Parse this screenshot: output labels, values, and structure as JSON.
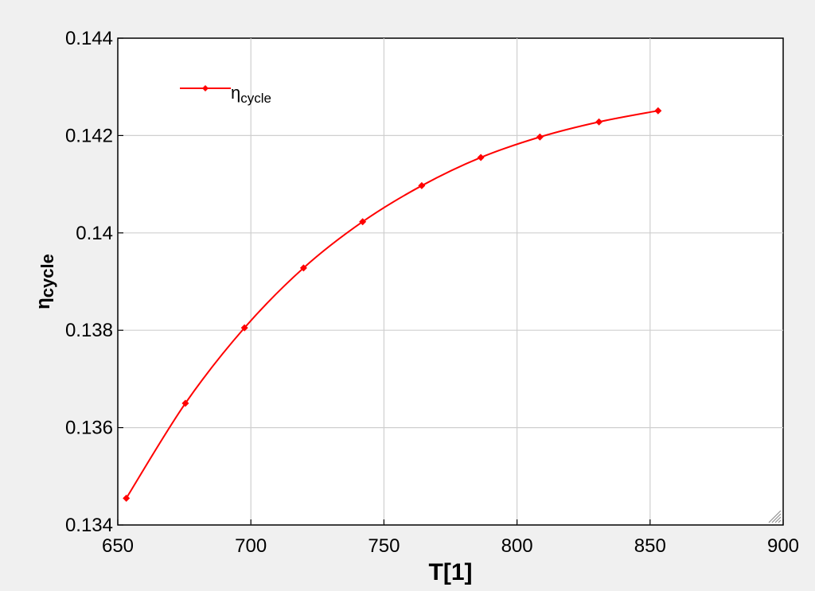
{
  "chart_data": {
    "type": "line",
    "xlabel": "T[1]",
    "ylabel": "η",
    "ylabel_sub": "cycle",
    "xlim": [
      650,
      900
    ],
    "ylim": [
      0.134,
      0.144
    ],
    "x_ticks": [
      "650",
      "700",
      "750",
      "800",
      "850",
      "900"
    ],
    "y_ticks": [
      "0.134",
      "0.136",
      "0.138",
      "0.14",
      "0.142",
      "0.144"
    ],
    "grid": true,
    "legend": {
      "position": "top-left",
      "symbol": "η",
      "subscript": "cycle"
    },
    "series": [
      {
        "name": "η_cycle",
        "color": "#ff0000",
        "marker": "diamond",
        "x": [
          653.2,
          675.4,
          697.6,
          719.8,
          742.0,
          764.2,
          786.4,
          808.6,
          830.8,
          853.0
        ],
        "y": [
          0.13455,
          0.1365,
          0.13805,
          0.13928,
          0.14023,
          0.14097,
          0.14155,
          0.14197,
          0.14228,
          0.14251
        ]
      }
    ]
  }
}
